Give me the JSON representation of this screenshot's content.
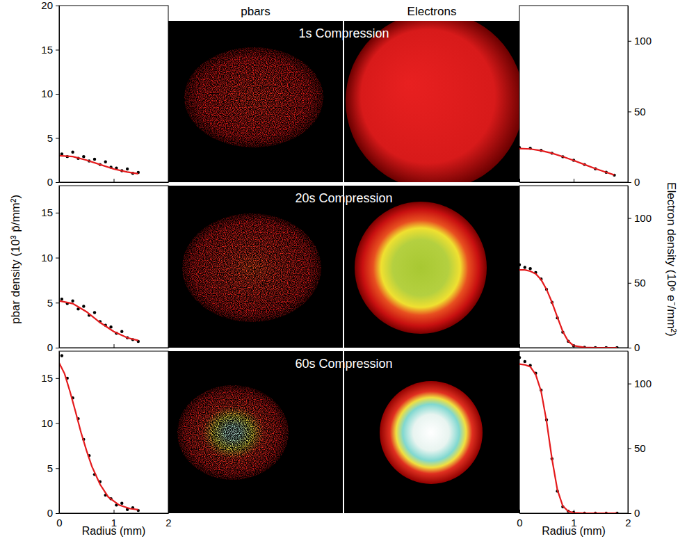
{
  "column_titles": [
    "pbars",
    "Electrons"
  ],
  "row_titles": [
    "1s Compression",
    "20s Compression",
    "60s Compression"
  ],
  "xlabel": "Radius (mm)",
  "left_ylabel": "pbar density (10³ p̄/mm²)",
  "right_ylabel": "Electron density (10⁶ e⁻/mm²)",
  "chart_data": [
    {
      "type": "scatter",
      "xlim": [
        0,
        2
      ],
      "xticks": [
        0,
        1,
        2
      ],
      "ylim": [
        0,
        20
      ],
      "yticks": [
        0,
        5,
        10,
        15,
        20
      ],
      "tick_labels": "y",
      "series": [
        {
          "type": "scatter",
          "color": "#000000",
          "marker": "circle",
          "x": [
            0.05,
            0.15,
            0.25,
            0.35,
            0.45,
            0.55,
            0.65,
            0.75,
            0.85,
            0.95,
            1.05,
            1.15,
            1.25,
            1.35,
            1.45
          ],
          "values": [
            3.2,
            2.9,
            3.4,
            2.7,
            2.9,
            2.4,
            2.6,
            2.0,
            2.3,
            1.7,
            1.6,
            1.3,
            1.5,
            1.0,
            1.1
          ]
        },
        {
          "type": "line",
          "color": "#e41a1c",
          "line_style": "solid",
          "x": [
            0,
            0.25,
            0.5,
            0.75,
            1.0,
            1.25,
            1.45
          ],
          "values": [
            3.0,
            2.9,
            2.5,
            2.0,
            1.5,
            1.15,
            0.95
          ]
        }
      ]
    },
    {
      "type": "scatter",
      "xlim": [
        0,
        2
      ],
      "xticks": [
        0,
        1,
        2
      ],
      "ylim": [
        0,
        18
      ],
      "yticks": [
        0,
        5,
        10,
        15
      ],
      "tick_labels": "y",
      "series": [
        {
          "type": "scatter",
          "color": "#000000",
          "marker": "circle",
          "x": [
            0.05,
            0.15,
            0.25,
            0.35,
            0.45,
            0.55,
            0.65,
            0.75,
            0.85,
            0.95,
            1.05,
            1.15,
            1.25,
            1.35,
            1.45
          ],
          "values": [
            5.4,
            4.9,
            5.2,
            4.3,
            4.6,
            3.6,
            3.9,
            2.9,
            2.5,
            2.3,
            1.6,
            1.8,
            1.1,
            0.9,
            0.7
          ]
        },
        {
          "type": "line",
          "color": "#e41a1c",
          "line_style": "solid",
          "x": [
            0,
            0.25,
            0.5,
            0.75,
            1.0,
            1.25,
            1.45
          ],
          "values": [
            5.2,
            4.9,
            4.0,
            2.8,
            1.8,
            1.1,
            0.8
          ]
        }
      ]
    },
    {
      "type": "scatter",
      "xlim": [
        0,
        2
      ],
      "xticks": [
        0,
        1,
        2
      ],
      "ylim": [
        0,
        18
      ],
      "yticks": [
        0,
        5,
        10,
        15
      ],
      "series": [
        {
          "type": "scatter",
          "color": "#000000",
          "marker": "circle",
          "x": [
            0.05,
            0.15,
            0.25,
            0.35,
            0.45,
            0.55,
            0.65,
            0.75,
            0.85,
            0.95,
            1.05,
            1.15,
            1.25,
            1.35,
            1.45
          ],
          "values": [
            17.5,
            15.0,
            12.8,
            10.5,
            8.2,
            6.4,
            4.3,
            3.5,
            2.0,
            1.6,
            0.9,
            1.1,
            0.4,
            0.6,
            0.3
          ]
        },
        {
          "type": "line",
          "color": "#e41a1c",
          "line_style": "solid",
          "x": [
            0,
            0.1,
            0.2,
            0.3,
            0.4,
            0.5,
            0.6,
            0.75,
            0.9,
            1.1,
            1.3,
            1.45
          ],
          "values": [
            16.7,
            15.5,
            13.5,
            11.3,
            9.0,
            7.0,
            5.2,
            3.2,
            1.8,
            0.9,
            0.5,
            0.4
          ]
        }
      ]
    },
    {
      "type": "scatter",
      "xlim": [
        0,
        2
      ],
      "xticks": [
        0,
        1,
        2
      ],
      "ylim": [
        0,
        125
      ],
      "yticks": [
        0,
        50,
        100
      ],
      "tick_labels": "y",
      "series": [
        {
          "type": "scatter",
          "color": "#000000",
          "marker": "circle",
          "x": [
            0,
            0.2,
            0.4,
            0.6,
            0.8,
            1.0,
            1.2,
            1.4,
            1.6,
            1.75
          ],
          "values": [
            24.5,
            24,
            22.5,
            20.5,
            18,
            15.5,
            12.5,
            9.5,
            7,
            5
          ]
        },
        {
          "type": "line",
          "color": "#e41a1c",
          "line_style": "solid",
          "x": [
            0,
            0.2,
            0.4,
            0.6,
            0.8,
            1.0,
            1.2,
            1.4,
            1.6,
            1.75
          ],
          "values": [
            23.8,
            23.5,
            22.3,
            20.5,
            18.1,
            15.4,
            12.5,
            9.6,
            7.0,
            5.1
          ]
        }
      ]
    },
    {
      "type": "scatter",
      "xlim": [
        0,
        2
      ],
      "xticks": [
        0,
        1,
        2
      ],
      "ylim": [
        0,
        125
      ],
      "yticks": [
        0,
        50,
        100
      ],
      "tick_labels": "y",
      "series": [
        {
          "type": "scatter",
          "color": "#000000",
          "marker": "circle",
          "x": [
            0,
            0.1,
            0.2,
            0.3,
            0.4,
            0.5,
            0.6,
            0.7,
            0.8,
            0.9,
            1.0,
            1.2,
            1.4,
            1.6,
            1.8
          ],
          "values": [
            64,
            62,
            61,
            58,
            53,
            45,
            35,
            23,
            12,
            5,
            1.5,
            0.3,
            0,
            0,
            0
          ]
        },
        {
          "type": "line",
          "color": "#e41a1c",
          "line_style": "solid",
          "x": [
            0,
            0.1,
            0.2,
            0.3,
            0.4,
            0.5,
            0.6,
            0.7,
            0.8,
            0.9,
            1.0,
            1.2,
            1.4,
            1.6,
            1.8
          ],
          "values": [
            60,
            60,
            59,
            57,
            52.5,
            45,
            35,
            23.5,
            12.5,
            5,
            1.5,
            0.2,
            0,
            0,
            0
          ]
        }
      ]
    },
    {
      "type": "scatter",
      "xlim": [
        0,
        2
      ],
      "xticks": [
        0,
        1,
        2
      ],
      "ylim": [
        0,
        125
      ],
      "yticks": [
        0,
        50,
        100
      ],
      "series": [
        {
          "type": "scatter",
          "color": "#000000",
          "marker": "circle",
          "x": [
            0,
            0.1,
            0.2,
            0.3,
            0.4,
            0.5,
            0.6,
            0.7,
            0.8,
            0.9,
            1.0,
            1.2,
            1.4,
            1.6,
            1.8
          ],
          "values": [
            120,
            117,
            114,
            108,
            95,
            72,
            42,
            17,
            5,
            1.5,
            0.5,
            0,
            0,
            0,
            0
          ]
        },
        {
          "type": "line",
          "color": "#e41a1c",
          "line_style": "solid",
          "x": [
            0,
            0.1,
            0.2,
            0.3,
            0.4,
            0.5,
            0.6,
            0.7,
            0.8,
            0.9,
            1.0,
            1.2,
            1.4,
            1.6,
            1.8
          ],
          "values": [
            115,
            114.5,
            113,
            107,
            94,
            71,
            42,
            18,
            5.5,
            1.5,
            0.4,
            0,
            0,
            0,
            0
          ]
        }
      ]
    }
  ]
}
